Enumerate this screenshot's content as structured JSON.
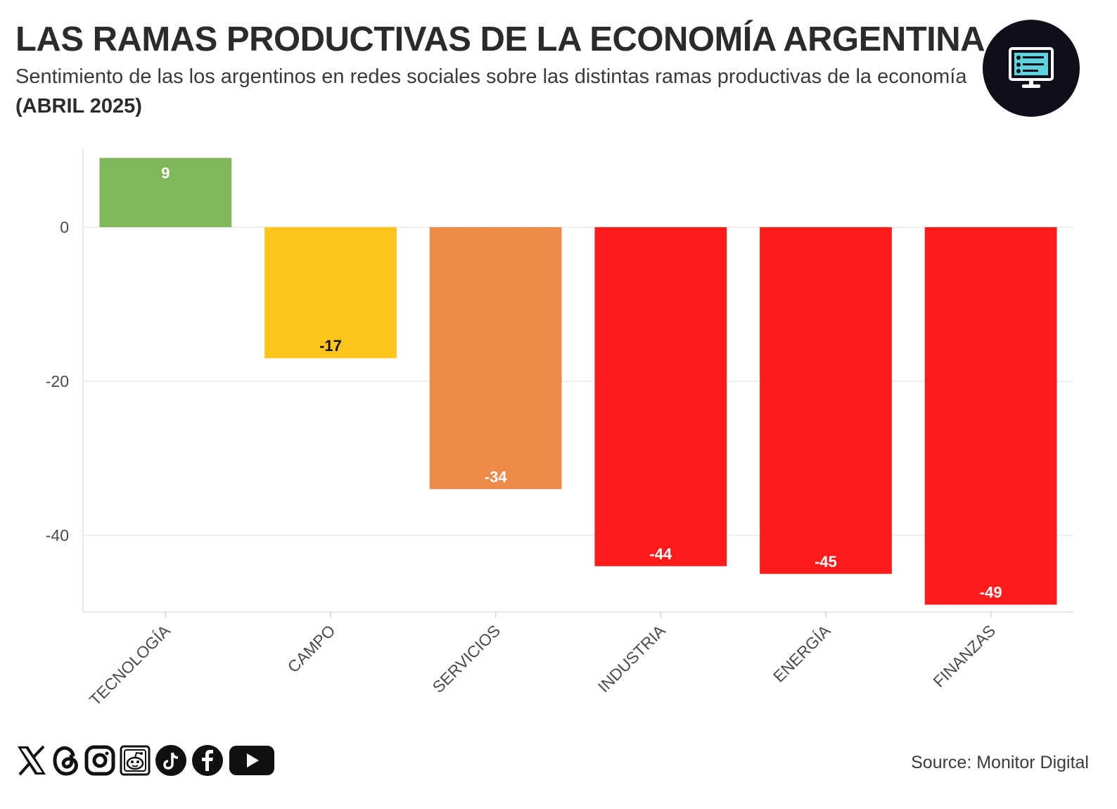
{
  "header": {
    "title": "LAS RAMAS PRODUCTIVAS DE LA ECONOMÍA ARGENTINA",
    "subtitle_text": "Sentimiento de las los argentinos en redes sociales sobre las distintas ramas productivas de la economía ",
    "subtitle_bold": "(ABRIL 2025)"
  },
  "logo": {
    "icon": "monitor-icon"
  },
  "chart_data": {
    "type": "bar",
    "title": "",
    "xlabel": "",
    "ylabel": "",
    "categories": [
      "TECNOLOGÍA",
      "CAMPO",
      "SERVICIOS",
      "INDUSTRIA",
      "ENERGÍA",
      "FINANZAS"
    ],
    "values": [
      9,
      -17,
      -34,
      -44,
      -45,
      -49
    ],
    "labels": [
      "9",
      "-17",
      "-34",
      "-44",
      "-45",
      "-49"
    ],
    "colors": [
      "#7fb75a",
      "#fdc41a",
      "#ee8a48",
      "#ff1b1b",
      "#ff1b1b",
      "#ff1b1b"
    ],
    "label_colors": [
      "#ffffff",
      "#111111",
      "#ffffff",
      "#ffffff",
      "#ffffff",
      "#ffffff"
    ],
    "yticks": [
      0,
      -20,
      -40
    ],
    "ylim": [
      -50,
      10
    ],
    "grid": true,
    "legend": "none"
  },
  "social": [
    "x-icon",
    "threads-icon",
    "instagram-icon",
    "reddit-icon",
    "tiktok-icon",
    "facebook-icon",
    "youtube-icon"
  ],
  "footer": {
    "source": "Source: Monitor Digital"
  }
}
